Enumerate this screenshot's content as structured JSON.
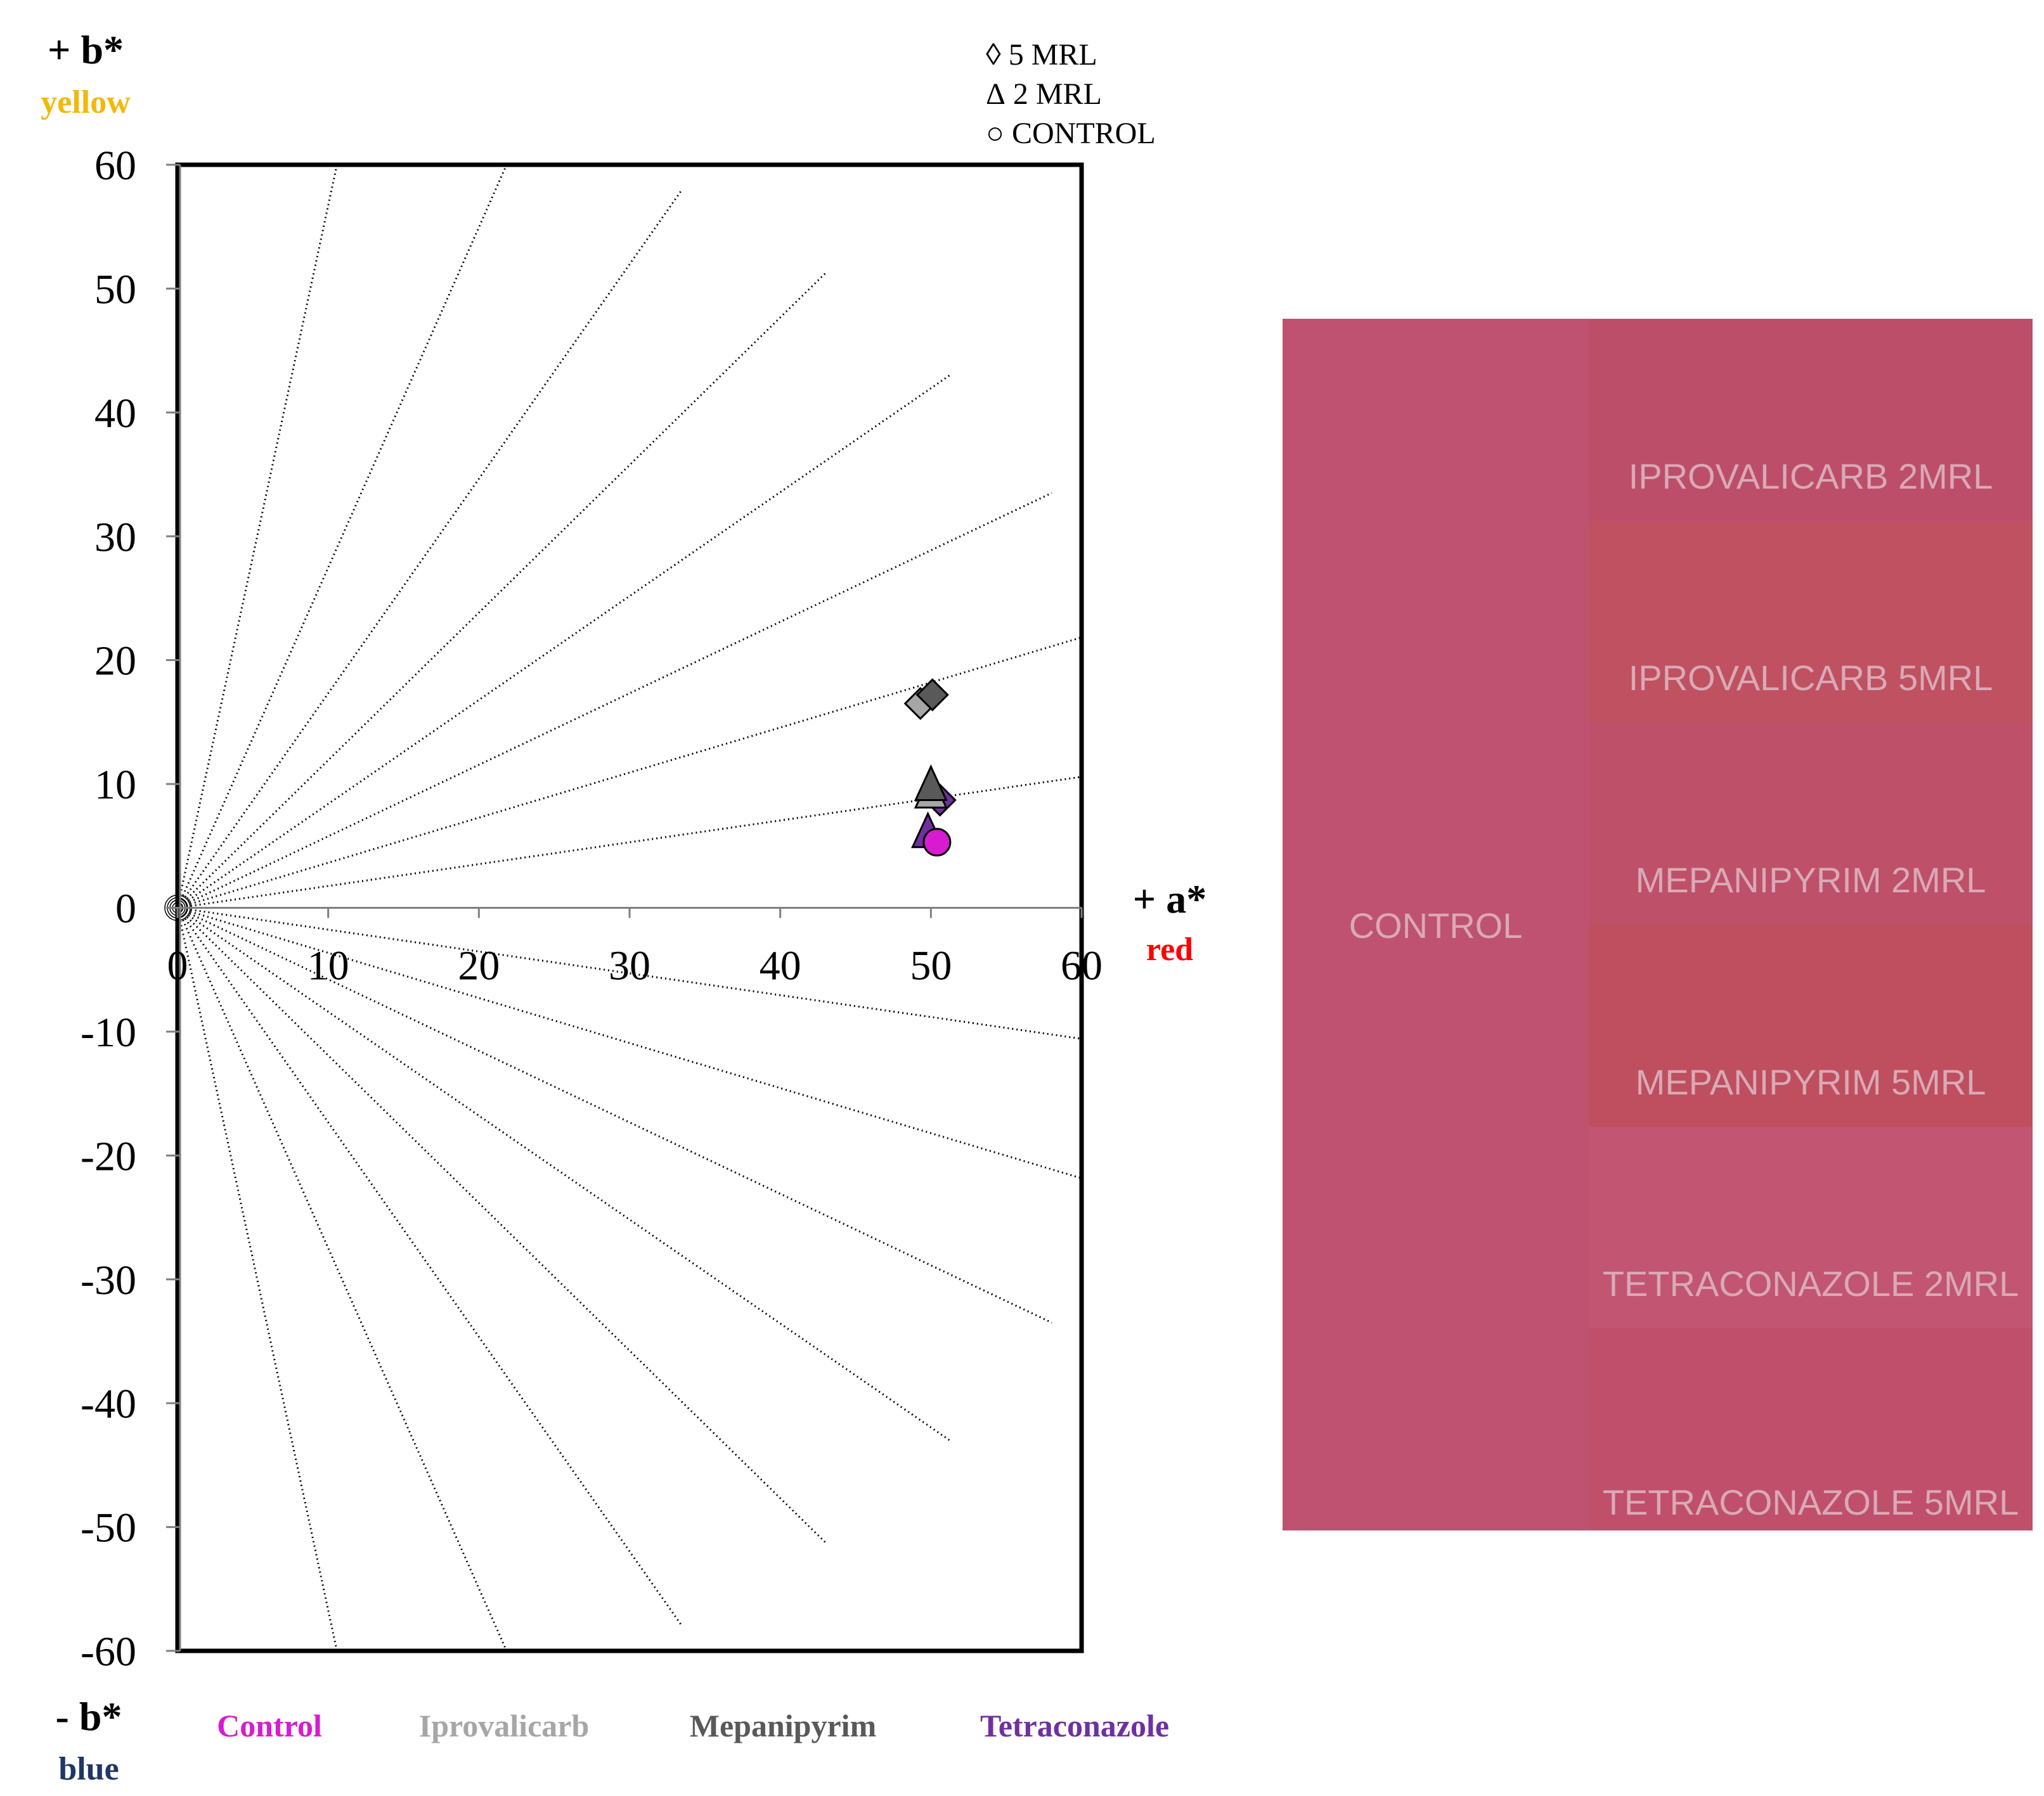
{
  "chart_data": {
    "type": "scatter",
    "title": "",
    "xlabel": "+ a*",
    "xlabel_sub": "red",
    "ylabel_top": "+ b*",
    "ylabel_top_sub": "yellow",
    "ylabel_bottom": "- b*",
    "ylabel_bottom_sub": "blue",
    "xlim": [
      0,
      60
    ],
    "ylim": [
      -60,
      60
    ],
    "x_ticks": [
      "0",
      "10",
      "20",
      "30",
      "40",
      "50",
      "60"
    ],
    "y_ticks": [
      "60",
      "50",
      "40",
      "30",
      "20",
      "10",
      "0",
      "-10",
      "-20",
      "-30",
      "-40",
      "-50",
      "-60"
    ],
    "hue_guide_lines_deg": [
      10,
      20,
      30,
      40,
      50,
      60,
      70,
      80,
      -10,
      -20,
      -30,
      -40,
      -50,
      -60,
      -70,
      -80
    ],
    "marker_legend": [
      {
        "symbol": "◊",
        "label": "5 MRL"
      },
      {
        "symbol": "Δ",
        "label": "2 MRL"
      },
      {
        "symbol": "○",
        "label": "CONTROL"
      }
    ],
    "series": [
      {
        "name": "Control",
        "color": "#d81bd1",
        "points": [
          {
            "x": 50.4,
            "y": 5.3,
            "marker": "circle"
          }
        ]
      },
      {
        "name": "Iprovalicarb",
        "color": "#a6a6a6",
        "points": [
          {
            "x": 49.3,
            "y": 16.5,
            "marker": "diamond"
          },
          {
            "x": 50.0,
            "y": 9.0,
            "marker": "triangle"
          }
        ]
      },
      {
        "name": "Mepanipyrim",
        "color": "#595959",
        "points": [
          {
            "x": 50.1,
            "y": 17.2,
            "marker": "diamond"
          },
          {
            "x": 50.0,
            "y": 9.6,
            "marker": "triangle"
          }
        ]
      },
      {
        "name": "Tetraconazole",
        "color": "#7030a0",
        "points": [
          {
            "x": 50.6,
            "y": 8.7,
            "marker": "diamond"
          },
          {
            "x": 49.8,
            "y": 5.8,
            "marker": "triangle"
          }
        ]
      }
    ]
  },
  "colors": {
    "yellow_label": "#f2b90c",
    "red_label": "#ff0000",
    "blue_label": "#1f3864"
  },
  "swatch_panel": {
    "control": {
      "label": "CONTROL",
      "color": "#bf5270"
    },
    "tiles": [
      {
        "label": "IPROVALICARB 2MRL",
        "color": "#bd4e6a"
      },
      {
        "label": "IPROVALICARB 5MRL",
        "color": "#c05160"
      },
      {
        "label": "MEPANIPYRIM 2MRL",
        "color": "#bf506a"
      },
      {
        "label": "MEPANIPYRIM 5MRL",
        "color": "#bf4f5e"
      },
      {
        "label": "TETRACONAZOLE 2MRL",
        "color": "#c25572"
      },
      {
        "label": "TETRACONAZOLE 5MRL",
        "color": "#c04f6b"
      }
    ]
  }
}
